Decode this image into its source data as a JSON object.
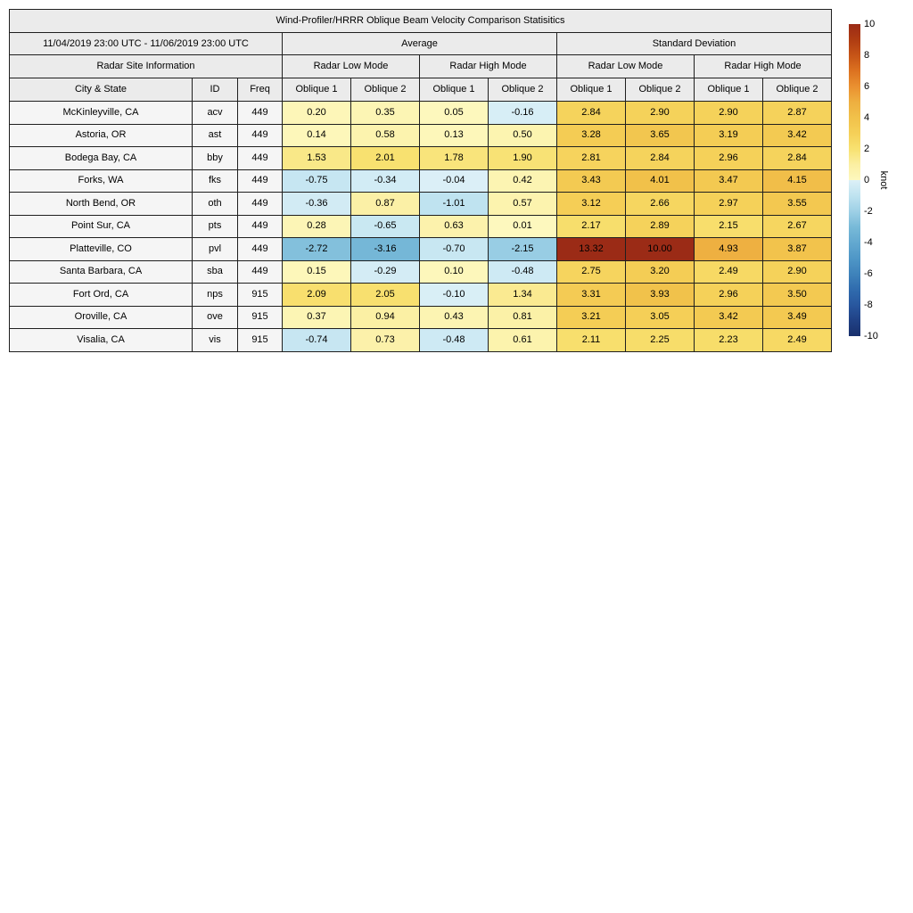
{
  "chart_data": {
    "type": "heatmap-table",
    "title": "Wind-Profiler/HRRR Oblique Beam Velocity Comparison Statisitics",
    "date_range": "11/04/2019 23:00 UTC - 11/06/2019 23:00 UTC",
    "site_info_label": "Radar Site Information",
    "groups": [
      "Average",
      "Standard Deviation"
    ],
    "mode_labels": [
      "Radar Low Mode",
      "Radar High Mode"
    ],
    "columns": [
      "City & State",
      "ID",
      "Freq",
      "Oblique 1",
      "Oblique 2",
      "Oblique 1",
      "Oblique 2",
      "Oblique 1",
      "Oblique 2",
      "Oblique 1",
      "Oblique 2"
    ],
    "unit": "knot",
    "rows": [
      {
        "city": "McKinleyville, CA",
        "id": "acv",
        "freq": "449",
        "values": [
          0.2,
          0.35,
          0.05,
          -0.16,
          2.84,
          2.9,
          2.9,
          2.87
        ]
      },
      {
        "city": "Astoria, OR",
        "id": "ast",
        "freq": "449",
        "values": [
          0.14,
          0.58,
          0.13,
          0.5,
          3.28,
          3.65,
          3.19,
          3.42
        ]
      },
      {
        "city": "Bodega Bay, CA",
        "id": "bby",
        "freq": "449",
        "values": [
          1.53,
          2.01,
          1.78,
          1.9,
          2.81,
          2.84,
          2.96,
          2.84
        ]
      },
      {
        "city": "Forks, WA",
        "id": "fks",
        "freq": "449",
        "values": [
          -0.75,
          -0.34,
          -0.04,
          0.42,
          3.43,
          4.01,
          3.47,
          4.15
        ]
      },
      {
        "city": "North Bend, OR",
        "id": "oth",
        "freq": "449",
        "values": [
          -0.36,
          0.87,
          -1.01,
          0.57,
          3.12,
          2.66,
          2.97,
          3.55
        ]
      },
      {
        "city": "Point Sur, CA",
        "id": "pts",
        "freq": "449",
        "values": [
          0.28,
          -0.65,
          0.63,
          0.01,
          2.17,
          2.89,
          2.15,
          2.67
        ]
      },
      {
        "city": "Platteville, CO",
        "id": "pvl",
        "freq": "449",
        "values": [
          -2.72,
          -3.16,
          -0.7,
          -2.15,
          13.32,
          10.0,
          4.93,
          3.87
        ]
      },
      {
        "city": "Santa Barbara, CA",
        "id": "sba",
        "freq": "449",
        "values": [
          0.15,
          -0.29,
          0.1,
          -0.48,
          2.75,
          3.2,
          2.49,
          2.9
        ]
      },
      {
        "city": "Fort Ord, CA",
        "id": "nps",
        "freq": "915",
        "values": [
          2.09,
          2.05,
          -0.1,
          1.34,
          3.31,
          3.93,
          2.96,
          3.5
        ]
      },
      {
        "city": "Oroville, CA",
        "id": "ove",
        "freq": "915",
        "values": [
          0.37,
          0.94,
          0.43,
          0.81,
          3.21,
          3.05,
          3.42,
          3.49
        ]
      },
      {
        "city": "Visalia, CA",
        "id": "vis",
        "freq": "915",
        "values": [
          -0.74,
          0.73,
          -0.48,
          0.61,
          2.11,
          2.25,
          2.23,
          2.49
        ]
      }
    ],
    "color_scale": {
      "min": -10,
      "max": 10,
      "ticks": [
        10,
        8,
        6,
        4,
        2,
        0,
        -2,
        -4,
        -6,
        -8,
        -10
      ],
      "warm_anchors": [
        "#FDF8BE",
        "#FBEFA2",
        "#F8E170",
        "#F5D058",
        "#F1C14A",
        "#EEAF40",
        "#EA9030",
        "#DC7220",
        "#C65417",
        "#AF3C12",
        "#9B2B16"
      ],
      "cool_anchors": [
        "#DCF0F7",
        "#BFE3F0",
        "#9ED0E6",
        "#78BAD8",
        "#63A9D0",
        "#4F97C7",
        "#3F83BB",
        "#306CAE",
        "#28579F",
        "#204185",
        "#19306C"
      ]
    }
  }
}
